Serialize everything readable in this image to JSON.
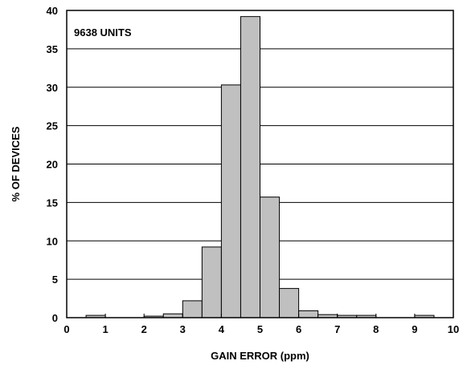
{
  "chart_data": {
    "type": "bar",
    "annotation": "9638 UNITS",
    "xlabel": "GAIN ERROR (ppm)",
    "ylabel": "% OF DEVICES",
    "xlim": [
      0,
      10
    ],
    "ylim": [
      0,
      40
    ],
    "grid": true,
    "x_ticks": [
      "0",
      "1",
      "2",
      "3",
      "4",
      "5",
      "6",
      "7",
      "8",
      "9",
      "10"
    ],
    "y_ticks": [
      "0",
      "5",
      "10",
      "15",
      "20",
      "25",
      "30",
      "35",
      "40"
    ],
    "bin_width": 0.5,
    "bins": [
      {
        "x": 0.75,
        "value": 0.3
      },
      {
        "x": 2.25,
        "value": 0.2
      },
      {
        "x": 2.75,
        "value": 0.5
      },
      {
        "x": 3.25,
        "value": 2.2
      },
      {
        "x": 3.75,
        "value": 9.2
      },
      {
        "x": 4.25,
        "value": 30.3
      },
      {
        "x": 4.75,
        "value": 39.2
      },
      {
        "x": 5.25,
        "value": 15.7
      },
      {
        "x": 5.75,
        "value": 3.8
      },
      {
        "x": 6.25,
        "value": 0.9
      },
      {
        "x": 6.75,
        "value": 0.4
      },
      {
        "x": 7.25,
        "value": 0.3
      },
      {
        "x": 7.75,
        "value": 0.3
      },
      {
        "x": 9.25,
        "value": 0.3
      }
    ],
    "colors": {
      "bar_fill": "#c0c0c0",
      "bar_stroke": "#000000",
      "grid": "#000000"
    }
  }
}
